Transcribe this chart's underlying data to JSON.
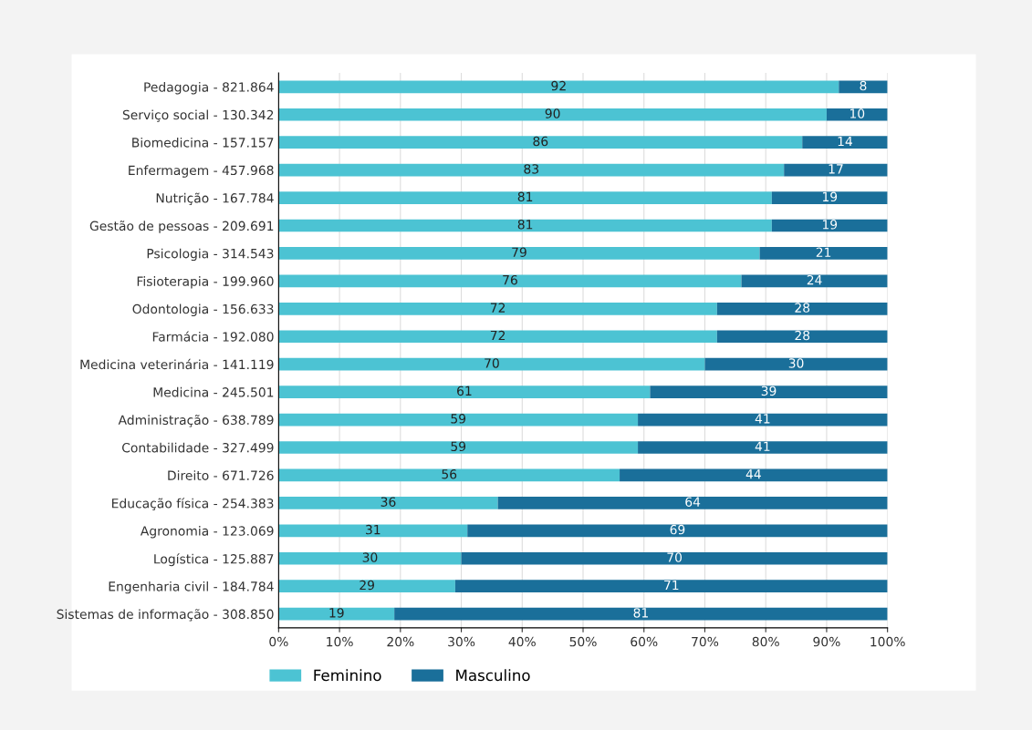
{
  "chart_data": {
    "type": "bar",
    "orientation": "horizontal",
    "stacked": true,
    "data_labels": true,
    "grid": "x",
    "legend": "bottom",
    "categories": [
      "Pedagogia - 821.864",
      "Serviço social - 130.342",
      "Biomedicina - 157.157",
      "Enfermagem - 457.968",
      "Nutrição - 167.784",
      "Gestão de pessoas - 209.691",
      "Psicologia - 314.543",
      "Fisioterapia - 199.960",
      "Odontologia - 156.633",
      "Farmácia - 192.080",
      "Medicina veterinária - 141.119",
      "Medicina - 245.501",
      "Administração - 638.789",
      "Contabilidade - 327.499",
      "Direito - 671.726",
      "Educação física - 254.383",
      "Agronomia - 123.069",
      "Logística - 125.887",
      "Engenharia civil - 184.784",
      "Sistemas de informação - 308.850"
    ],
    "series": [
      {
        "name": "Feminino",
        "color": "#4cc3d3",
        "values": [
          92,
          90,
          86,
          83,
          81,
          81,
          79,
          76,
          72,
          72,
          70,
          61,
          59,
          59,
          56,
          36,
          31,
          30,
          29,
          19
        ]
      },
      {
        "name": "Masculino",
        "color": "#1a6f9a",
        "values": [
          8,
          10,
          14,
          17,
          19,
          19,
          21,
          24,
          28,
          28,
          30,
          39,
          41,
          41,
          44,
          64,
          69,
          70,
          71,
          81
        ]
      }
    ],
    "xlim": [
      0,
      100
    ],
    "xticks": [
      {
        "value": 0,
        "label": "0%"
      },
      {
        "value": 10,
        "label": "10%"
      },
      {
        "value": 20,
        "label": "20%"
      },
      {
        "value": 30,
        "label": "30%"
      },
      {
        "value": 40,
        "label": "40%"
      },
      {
        "value": 50,
        "label": "50%"
      },
      {
        "value": 60,
        "label": "60%"
      },
      {
        "value": 70,
        "label": "70%"
      },
      {
        "value": 80,
        "label": "80%"
      },
      {
        "value": 90,
        "label": "90%"
      },
      {
        "value": 100,
        "label": "100%"
      }
    ]
  }
}
